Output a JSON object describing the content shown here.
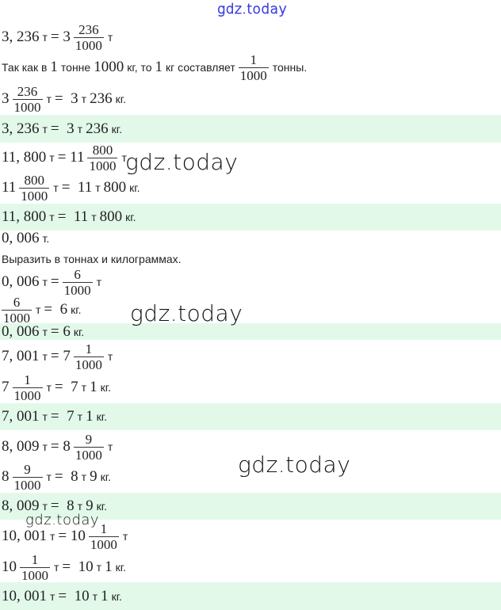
{
  "watermarks": {
    "top": "gdz.today",
    "w1": "gdz.today",
    "w2": "gdz.today",
    "w3": "gdz.today",
    "w4": "gdz.today"
  },
  "colors": {
    "highlight": "#e2f9ea",
    "watermark_top": "#3a3ae0"
  },
  "lines": [
    {
      "hl": false,
      "parts": [
        {
          "m": "3, 236"
        },
        {
          "s": "т"
        },
        {
          "m": "= 3"
        },
        {
          "f": [
            "236",
            "1000"
          ]
        },
        {
          "s": "т"
        }
      ]
    },
    {
      "hl": false,
      "parts": [
        {
          "s": "Так как в"
        },
        {
          "m": "1"
        },
        {
          "s": "тонне"
        },
        {
          "m": "1000"
        },
        {
          "s": "кг, то"
        },
        {
          "m": "1"
        },
        {
          "s": "кг составляет"
        },
        {
          "f": [
            "1",
            "1000"
          ]
        },
        {
          "s": "тонны."
        }
      ]
    },
    {
      "hl": false,
      "parts": [
        {
          "m": "3"
        },
        {
          "f": [
            "236",
            "1000"
          ]
        },
        {
          "s": "т"
        },
        {
          "m": "=  3"
        },
        {
          "s": "т"
        },
        {
          "m": "236"
        },
        {
          "s": "кг."
        }
      ]
    },
    {
      "hl": true,
      "parts": [
        {
          "m": "3, 236"
        },
        {
          "s": "т"
        },
        {
          "m": "=  3"
        },
        {
          "s": "т"
        },
        {
          "m": "236"
        },
        {
          "s": "кг."
        }
      ]
    },
    {
      "hl": false,
      "parts": [
        {
          "m": "11, 800"
        },
        {
          "s": "т"
        },
        {
          "m": "= 11"
        },
        {
          "f": [
            "800",
            "1000"
          ]
        },
        {
          "s": "т"
        }
      ]
    },
    {
      "hl": false,
      "parts": [
        {
          "m": "11"
        },
        {
          "f": [
            "800",
            "1000"
          ]
        },
        {
          "s": "т"
        },
        {
          "m": "=  11"
        },
        {
          "s": "т"
        },
        {
          "m": "800"
        },
        {
          "s": "кг."
        }
      ]
    },
    {
      "hl": true,
      "parts": [
        {
          "m": "11, 800"
        },
        {
          "s": "т"
        },
        {
          "m": "=  11"
        },
        {
          "s": "т"
        },
        {
          "m": "800"
        },
        {
          "s": "кг."
        }
      ]
    },
    {
      "hl": false,
      "parts": [
        {
          "m": "0, 006"
        },
        {
          "s": "т."
        }
      ]
    },
    {
      "hl": false,
      "parts": [
        {
          "s": "Выразить в тоннах и килограммах."
        }
      ]
    },
    {
      "hl": false,
      "parts": [
        {
          "m": "0, 006"
        },
        {
          "s": "т"
        },
        {
          "m": "="
        },
        {
          "f": [
            "6",
            "1000"
          ]
        },
        {
          "s": "т"
        }
      ]
    },
    {
      "hl": false,
      "parts": [
        {
          "f": [
            "6",
            "1000"
          ]
        },
        {
          "s": "т"
        },
        {
          "m": "=  6"
        },
        {
          "s": "кг."
        }
      ]
    },
    {
      "hl": true,
      "parts": [
        {
          "m": "0, 006"
        },
        {
          "s": "т"
        },
        {
          "m": "= 6"
        },
        {
          "s": "кг."
        }
      ]
    },
    {
      "hl": false,
      "parts": [
        {
          "m": "7, 001"
        },
        {
          "s": "т"
        },
        {
          "m": "= 7"
        },
        {
          "f": [
            "1",
            "1000"
          ]
        },
        {
          "s": "т"
        }
      ]
    },
    {
      "hl": false,
      "parts": [
        {
          "m": "7"
        },
        {
          "f": [
            "1",
            "1000"
          ]
        },
        {
          "s": "т"
        },
        {
          "m": "=  7"
        },
        {
          "s": "т"
        },
        {
          "m": "1"
        },
        {
          "s": "кг."
        }
      ]
    },
    {
      "hl": true,
      "parts": [
        {
          "m": "7, 001"
        },
        {
          "s": "т"
        },
        {
          "m": "=  7"
        },
        {
          "s": "т"
        },
        {
          "m": "1"
        },
        {
          "s": "кг."
        }
      ]
    },
    {
      "hl": false,
      "parts": [
        {
          "m": "8, 009"
        },
        {
          "s": "т"
        },
        {
          "m": "= 8"
        },
        {
          "f": [
            "9",
            "1000"
          ]
        },
        {
          "s": "т"
        }
      ]
    },
    {
      "hl": false,
      "parts": [
        {
          "m": "8"
        },
        {
          "f": [
            "9",
            "1000"
          ]
        },
        {
          "s": "т"
        },
        {
          "m": "=  8"
        },
        {
          "s": "т"
        },
        {
          "m": "9"
        },
        {
          "s": "кг."
        }
      ]
    },
    {
      "hl": true,
      "parts": [
        {
          "m": "8, 009"
        },
        {
          "s": "т"
        },
        {
          "m": "=  8"
        },
        {
          "s": "т"
        },
        {
          "m": "9"
        },
        {
          "s": "кг."
        }
      ]
    },
    {
      "hl": false,
      "parts": [
        {
          "m": "10, 001"
        },
        {
          "s": "т"
        },
        {
          "m": "= 10"
        },
        {
          "f": [
            "1",
            "1000"
          ]
        },
        {
          "s": "т"
        }
      ]
    },
    {
      "hl": false,
      "parts": [
        {
          "m": "10"
        },
        {
          "f": [
            "1",
            "1000"
          ]
        },
        {
          "s": "т"
        },
        {
          "m": "=  10"
        },
        {
          "s": "т"
        },
        {
          "m": "1"
        },
        {
          "s": "кг."
        }
      ]
    },
    {
      "hl": true,
      "parts": [
        {
          "m": "10, 001"
        },
        {
          "s": "т"
        },
        {
          "m": "=  10"
        },
        {
          "s": "т"
        },
        {
          "m": "1"
        },
        {
          "s": "кг."
        }
      ]
    }
  ]
}
